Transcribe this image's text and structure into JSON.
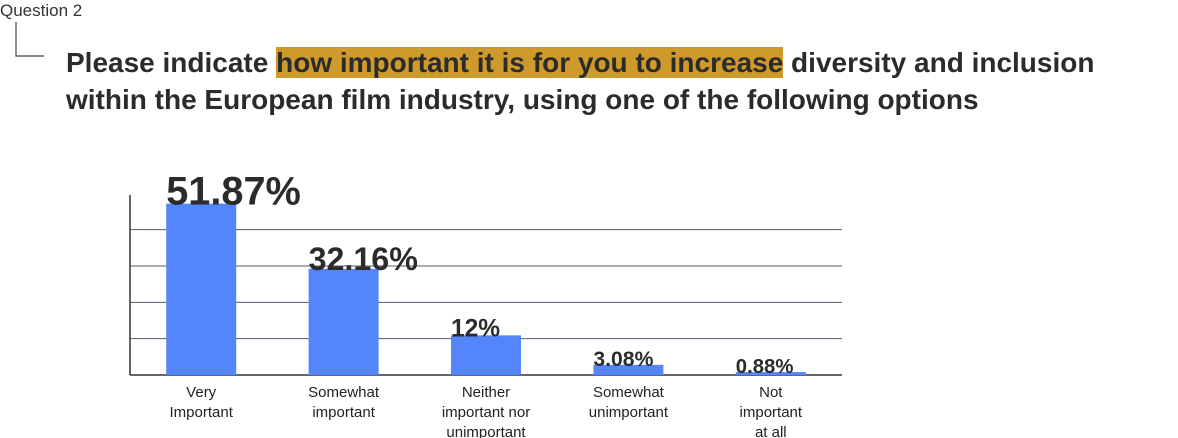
{
  "question": "Question 2",
  "title": {
    "before": "Please indicate ",
    "highlight": "how important it is for you to increase",
    "after": " diversity and inclusion within the European film industry, using one of the following options"
  },
  "chart_data": {
    "type": "bar",
    "categories": [
      "Very\nImportant",
      "Somewhat\nimportant",
      "Neither\nimportant nor\nunimportant",
      "Somewhat\nunimportant",
      "Not\nimportant\nat all"
    ],
    "values": [
      51.87,
      32.16,
      12,
      3.08,
      0.88
    ],
    "value_labels": [
      "51.87%",
      "32.16%",
      "12%",
      "3.08%",
      "0.88%"
    ],
    "color": "#5585fb",
    "ylim": [
      0,
      54.5
    ],
    "yticks": [
      11,
      22,
      33,
      44
    ],
    "grid": true
  }
}
